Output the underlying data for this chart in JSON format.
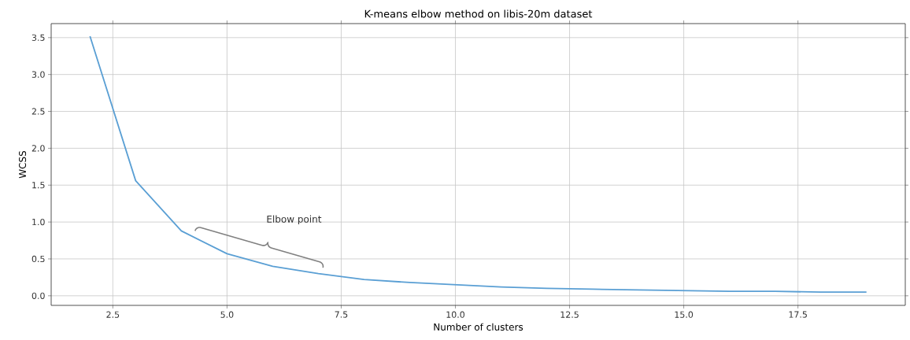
{
  "chart_data": {
    "type": "line",
    "title": "K-means elbow method on libis-20m dataset",
    "xlabel": "Number of clusters",
    "ylabel": "WCSS",
    "x": [
      2,
      3,
      4,
      5,
      6,
      7,
      8,
      9,
      10,
      11,
      12,
      13,
      14,
      15,
      16,
      17,
      18,
      19
    ],
    "series": [
      {
        "color": "#5a9fd4",
        "values": [
          3.52,
          1.56,
          0.88,
          0.57,
          0.4,
          0.3,
          0.22,
          0.18,
          0.15,
          0.12,
          0.1,
          0.09,
          0.08,
          0.07,
          0.06,
          0.06,
          0.05,
          0.05
        ]
      }
    ],
    "xlim": [
      1.15,
      19.85
    ],
    "ylim": [
      -0.13,
      3.69
    ],
    "xticks": [
      {
        "value": 2.5,
        "label": "2.5"
      },
      {
        "value": 5,
        "label": "5.0"
      },
      {
        "value": 7.5,
        "label": "7.5"
      },
      {
        "value": 10,
        "label": "10.0"
      },
      {
        "value": 12.5,
        "label": "12.5"
      },
      {
        "value": 15,
        "label": "15.0"
      },
      {
        "value": 17.5,
        "label": "17.5"
      }
    ],
    "yticks": [
      {
        "value": 0,
        "label": "0.0"
      },
      {
        "value": 0.5,
        "label": "0.5"
      },
      {
        "value": 1,
        "label": "1.0"
      },
      {
        "value": 1.5,
        "label": "1.5"
      },
      {
        "value": 2,
        "label": "2.0"
      },
      {
        "value": 2.5,
        "label": "2.5"
      },
      {
        "value": 3,
        "label": "3.0"
      },
      {
        "value": 3.5,
        "label": "3.5"
      }
    ],
    "grid": true,
    "annotations": [
      "Elbow point"
    ]
  }
}
